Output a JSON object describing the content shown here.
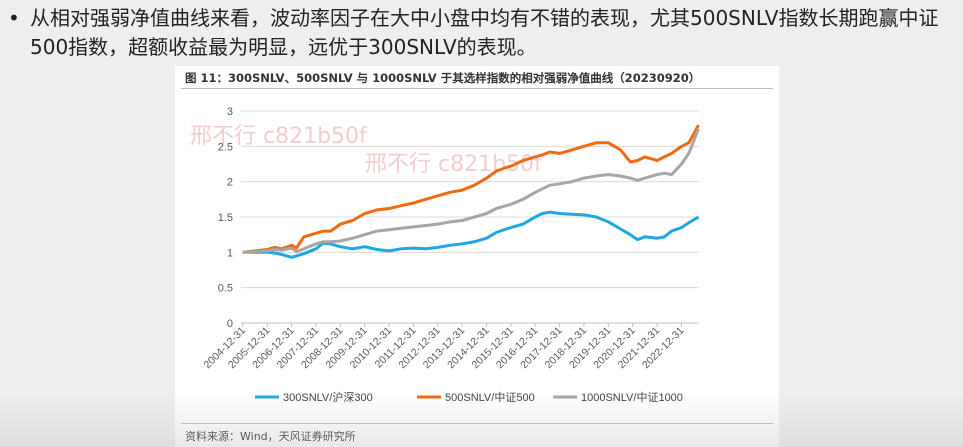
{
  "slide": {
    "bullet": "•",
    "text": "从相对强弱净值曲线来看，波动率因子在大中小盘中均有不错的表现，尤其500SNLV指数长期跑赢中证500指数，超额收益最为明显，远优于300SNLV的表现。"
  },
  "figure": {
    "title": "图 11：300SNLV、500SNLV 与 1000SNLV 于其选样指数的相对强弱净值曲线（20230920）",
    "source": "资料来源：Wind，天风证券研究所"
  },
  "watermarks": [
    "邢不行 c821b50f",
    "邢不行 c821b50f"
  ],
  "colors": {
    "s300": "#1ea7e4",
    "s500": "#f2690f",
    "s1000": "#a6a6a6",
    "grid": "#d9d9d9",
    "axis_text": "#595959"
  },
  "chart_data": {
    "type": "line",
    "title": "300SNLV、500SNLV 与 1000SNLV 于其选样指数的相对强弱净值曲线（20230920）",
    "xlabel": "",
    "ylabel": "",
    "ylim": [
      0,
      3
    ],
    "yticks": [
      0,
      0.5,
      1,
      1.5,
      2,
      2.5,
      3
    ],
    "ytick_labels": [
      "0",
      "0.5",
      "1",
      "1.5",
      "2",
      "2.5",
      "3"
    ],
    "xlim": [
      2004.92,
      2023.72
    ],
    "xtick_labels": [
      "2004-12-31",
      "2005-12-31",
      "2006-12-31",
      "2007-12-31",
      "2008-12-31",
      "2009-12-31",
      "2010-12-31",
      "2011-12-31",
      "2012-12-31",
      "2013-12-31",
      "2014-12-31",
      "2015-12-31",
      "2016-12-31",
      "2017-12-31",
      "2018-12-31",
      "2019-12-31",
      "2020-12-31",
      "2021-12-31",
      "2022-12-31"
    ],
    "legend_position": "bottom",
    "x": [
      2005.0,
      2005.5,
      2006.0,
      2006.3,
      2006.6,
      2007.0,
      2007.2,
      2007.5,
      2008.0,
      2008.3,
      2008.6,
      2009.0,
      2009.5,
      2010.0,
      2010.5,
      2011.0,
      2011.5,
      2012.0,
      2012.5,
      2013.0,
      2013.5,
      2014.0,
      2014.5,
      2015.0,
      2015.4,
      2015.8,
      2016.0,
      2016.5,
      2017.0,
      2017.3,
      2017.6,
      2018.0,
      2018.5,
      2019.0,
      2019.5,
      2020.0,
      2020.5,
      2020.9,
      2021.2,
      2021.5,
      2022.0,
      2022.3,
      2022.6,
      2023.0,
      2023.3,
      2023.7
    ],
    "series": [
      {
        "name": "300SNLV/沪深300",
        "key": "s300",
        "values": [
          1.0,
          1.0,
          1.0,
          0.99,
          0.97,
          0.93,
          0.95,
          0.98,
          1.05,
          1.13,
          1.12,
          1.08,
          1.05,
          1.08,
          1.04,
          1.02,
          1.05,
          1.06,
          1.05,
          1.07,
          1.1,
          1.12,
          1.15,
          1.2,
          1.28,
          1.33,
          1.35,
          1.4,
          1.5,
          1.55,
          1.57,
          1.55,
          1.54,
          1.53,
          1.5,
          1.43,
          1.33,
          1.25,
          1.18,
          1.22,
          1.2,
          1.22,
          1.3,
          1.35,
          1.42,
          1.5
        ]
      },
      {
        "name": "500SNLV/中证500",
        "key": "s500",
        "values": [
          1.0,
          1.02,
          1.04,
          1.07,
          1.05,
          1.1,
          1.06,
          1.22,
          1.27,
          1.3,
          1.3,
          1.4,
          1.45,
          1.55,
          1.6,
          1.62,
          1.66,
          1.7,
          1.75,
          1.8,
          1.85,
          1.88,
          1.95,
          2.05,
          2.15,
          2.2,
          2.22,
          2.3,
          2.35,
          2.38,
          2.42,
          2.4,
          2.45,
          2.5,
          2.55,
          2.55,
          2.45,
          2.28,
          2.3,
          2.35,
          2.3,
          2.35,
          2.4,
          2.5,
          2.55,
          2.8
        ]
      },
      {
        "name": "1000SNLV/中证1000",
        "key": "s1000",
        "values": [
          1.0,
          1.01,
          1.02,
          1.04,
          1.03,
          1.06,
          1.01,
          1.05,
          1.12,
          1.15,
          1.15,
          1.16,
          1.2,
          1.25,
          1.3,
          1.32,
          1.34,
          1.36,
          1.38,
          1.4,
          1.43,
          1.45,
          1.5,
          1.55,
          1.62,
          1.66,
          1.68,
          1.75,
          1.85,
          1.9,
          1.95,
          1.97,
          2.0,
          2.05,
          2.08,
          2.1,
          2.08,
          2.05,
          2.02,
          2.05,
          2.1,
          2.12,
          2.1,
          2.25,
          2.4,
          2.75
        ]
      }
    ]
  }
}
